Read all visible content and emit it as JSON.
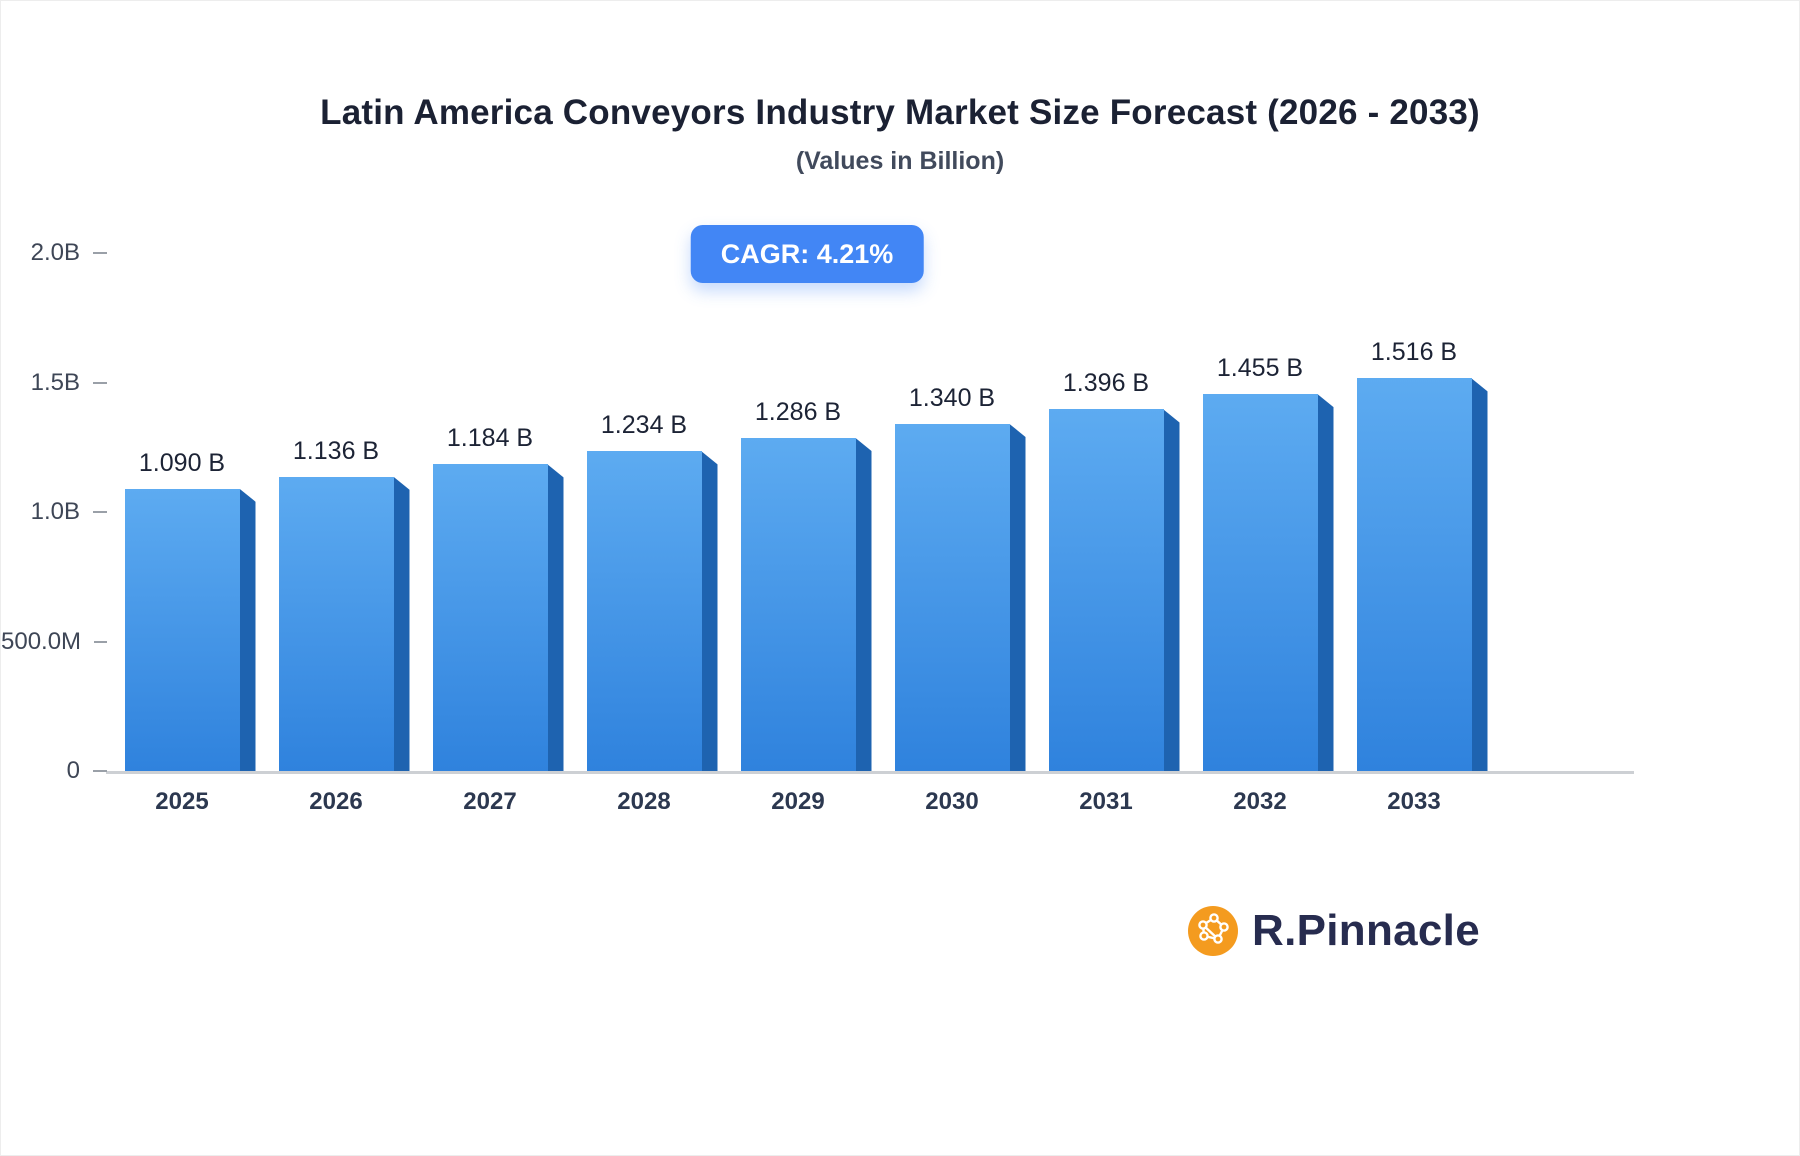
{
  "page": {
    "title": "Latin America Conveyors Industry Market Size Forecast (2026 - 2033)",
    "subtitle": "(Values in Billion)",
    "cagr_label": "CAGR: 4.21%"
  },
  "chart_data": {
    "type": "bar",
    "title": "Latin America Conveyors Industry Market Size Forecast (2026 - 2033)",
    "subtitle": "(Values in Billion)",
    "annotation": "CAGR: 4.21%",
    "categories": [
      "2025",
      "2026",
      "2027",
      "2028",
      "2029",
      "2030",
      "2031",
      "2032",
      "2033"
    ],
    "values": [
      1.09,
      1.136,
      1.184,
      1.234,
      1.286,
      1.34,
      1.396,
      1.455,
      1.516
    ],
    "value_labels": [
      "1.090 B",
      "1.136 B",
      "1.184 B",
      "1.234 B",
      "1.286 B",
      "1.340 B",
      "1.396 B",
      "1.455 B",
      "1.516 B"
    ],
    "xlabel": "",
    "ylabel": "",
    "ylim": [
      0,
      2.0
    ],
    "y_ticks": [
      {
        "value": 2.0,
        "label": "2.0B"
      },
      {
        "value": 1.5,
        "label": "1.5B"
      },
      {
        "value": 1.0,
        "label": "1.0B"
      },
      {
        "value": 0.5,
        "label": "500.0M"
      },
      {
        "value": 0.0,
        "label": "0"
      }
    ],
    "grid": false,
    "legend": false
  },
  "colors": {
    "bar_face_top": "#5dabf1",
    "bar_face_bottom": "#2f82dd",
    "bar_side": "#1e63b0",
    "badge_bg": "#4286f5",
    "axis_line": "#cdd0d4",
    "logo_orange": "#f49b1f",
    "logo_text": "#272c4f"
  },
  "branding": {
    "logo_text": "R.Pinnacle",
    "logo_icon": "network-molecule-icon"
  }
}
